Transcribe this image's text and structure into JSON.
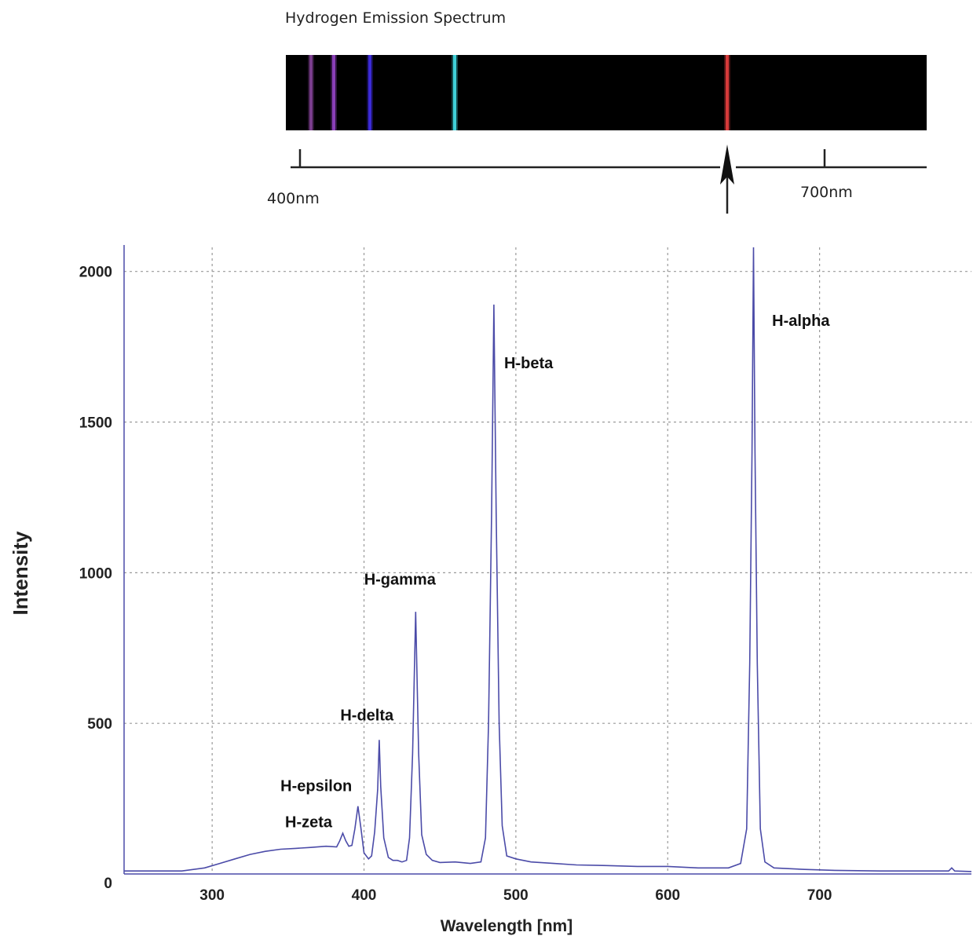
{
  "strip": {
    "title": "Hydrogen Emission Spectrum",
    "scale_start_label": "400nm",
    "scale_end_label": "700nm",
    "lines": [
      {
        "name": "violet-1",
        "color": "#7a3d8c"
      },
      {
        "name": "violet-2",
        "color": "#8a3fb8"
      },
      {
        "name": "indigo",
        "color": "#3b2ad6"
      },
      {
        "name": "cyan",
        "color": "#3fd0d8"
      },
      {
        "name": "red",
        "color": "#d63a3a"
      }
    ]
  },
  "chart_data": {
    "type": "line",
    "title": "",
    "xlabel": "Wavelength [nm]",
    "ylabel": "Intensity",
    "xlim": [
      242,
      800
    ],
    "ylim": [
      0,
      2080
    ],
    "x_ticks": [
      300,
      400,
      500,
      600,
      700
    ],
    "y_ticks": [
      0,
      500,
      1000,
      1500,
      2000
    ],
    "grid": true,
    "line_color": "#4b4ba8",
    "series": [
      {
        "points": [
          [
            242,
            10
          ],
          [
            260,
            10
          ],
          [
            280,
            10
          ],
          [
            295,
            20
          ],
          [
            305,
            35
          ],
          [
            315,
            50
          ],
          [
            325,
            65
          ],
          [
            335,
            75
          ],
          [
            345,
            82
          ],
          [
            355,
            85
          ],
          [
            365,
            88
          ],
          [
            375,
            92
          ],
          [
            382,
            90
          ],
          [
            384,
            110
          ],
          [
            386,
            135
          ],
          [
            388,
            110
          ],
          [
            390,
            92
          ],
          [
            392,
            95
          ],
          [
            394,
            150
          ],
          [
            396,
            225
          ],
          [
            398,
            150
          ],
          [
            400,
            70
          ],
          [
            403,
            50
          ],
          [
            405,
            60
          ],
          [
            407,
            140
          ],
          [
            409,
            280
          ],
          [
            410,
            445
          ],
          [
            411,
            290
          ],
          [
            413,
            120
          ],
          [
            416,
            55
          ],
          [
            419,
            45
          ],
          [
            422,
            45
          ],
          [
            425,
            40
          ],
          [
            428,
            45
          ],
          [
            430,
            120
          ],
          [
            432,
            400
          ],
          [
            434,
            870
          ],
          [
            436,
            400
          ],
          [
            438,
            130
          ],
          [
            441,
            65
          ],
          [
            445,
            45
          ],
          [
            450,
            38
          ],
          [
            460,
            40
          ],
          [
            470,
            35
          ],
          [
            477,
            40
          ],
          [
            480,
            120
          ],
          [
            482,
            500
          ],
          [
            484,
            1200
          ],
          [
            485.5,
            1890
          ],
          [
            487,
            1200
          ],
          [
            489,
            500
          ],
          [
            491,
            160
          ],
          [
            494,
            60
          ],
          [
            500,
            50
          ],
          [
            510,
            40
          ],
          [
            525,
            35
          ],
          [
            540,
            30
          ],
          [
            560,
            28
          ],
          [
            580,
            25
          ],
          [
            600,
            25
          ],
          [
            620,
            20
          ],
          [
            640,
            20
          ],
          [
            648,
            35
          ],
          [
            652,
            150
          ],
          [
            654,
            700
          ],
          [
            655.5,
            1400
          ],
          [
            656.5,
            2080
          ],
          [
            657.5,
            1400
          ],
          [
            659,
            700
          ],
          [
            661,
            150
          ],
          [
            664,
            40
          ],
          [
            670,
            20
          ],
          [
            690,
            15
          ],
          [
            710,
            12
          ],
          [
            740,
            10
          ],
          [
            770,
            10
          ],
          [
            785,
            10
          ],
          [
            787,
            20
          ],
          [
            789,
            10
          ],
          [
            800,
            8
          ]
        ]
      }
    ],
    "annotations": [
      {
        "text": "H-alpha",
        "x": 656.3,
        "y": 1840
      },
      {
        "text": "H-beta",
        "x": 486.1,
        "y": 1700
      },
      {
        "text": "H-gamma",
        "x": 434.0,
        "y": 960
      },
      {
        "text": "H-delta",
        "x": 410.2,
        "y": 510
      },
      {
        "text": "H-epsilon",
        "x": 397.0,
        "y": 275
      },
      {
        "text": "H-zeta",
        "x": 388.9,
        "y": 155
      }
    ]
  }
}
